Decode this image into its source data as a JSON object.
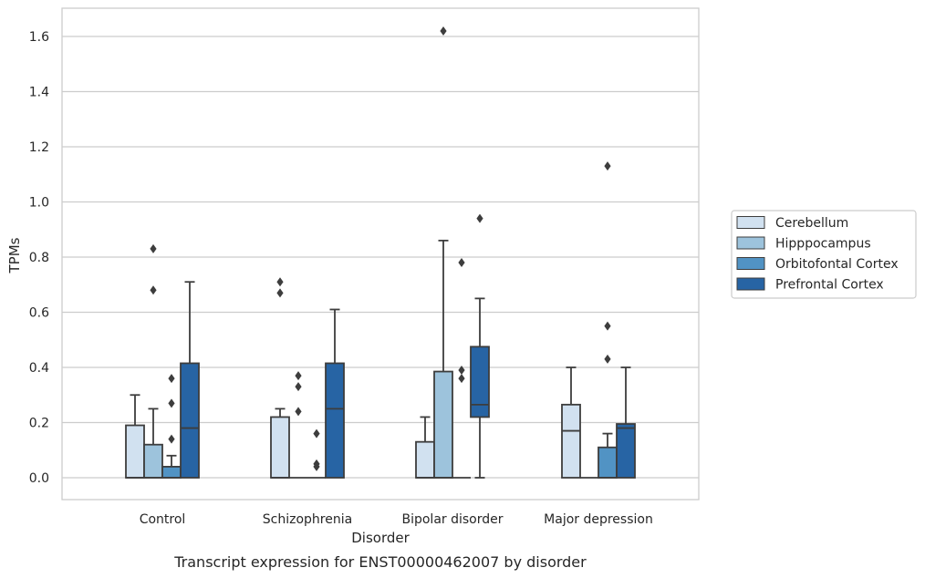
{
  "chart_data": {
    "type": "box",
    "title": "",
    "caption": "Transcript expression for ENST00000462007 by disorder",
    "xlabel": "Disorder",
    "ylabel": "TPMs",
    "ylim": [
      -0.08,
      1.7
    ],
    "yticks": [
      0.0,
      0.2,
      0.4,
      0.6,
      0.8,
      1.0,
      1.2,
      1.4,
      1.6
    ],
    "ytick_labels": [
      "0.0",
      "0.2",
      "0.4",
      "0.6",
      "0.8",
      "1.0",
      "1.2",
      "1.4",
      "1.6"
    ],
    "grid": "horizontal",
    "legend_position": "right",
    "categories": [
      "Control",
      "Schizophrenia",
      "Bipolar disorder",
      "Major depression"
    ],
    "series": [
      {
        "name": "Cerebellum",
        "color": "#d1e1f0",
        "boxes": [
          {
            "min": 0.0,
            "q1": 0.0,
            "median": 0.0,
            "q3": 0.19,
            "max": 0.3,
            "outliers": []
          },
          {
            "min": 0.0,
            "q1": 0.0,
            "median": 0.0,
            "q3": 0.22,
            "max": 0.25,
            "outliers": [
              0.71,
              0.67
            ]
          },
          {
            "min": 0.0,
            "q1": 0.0,
            "median": 0.0,
            "q3": 0.13,
            "max": 0.22,
            "outliers": []
          },
          {
            "min": 0.0,
            "q1": 0.0,
            "median": 0.17,
            "q3": 0.265,
            "max": 0.4,
            "outliers": []
          }
        ]
      },
      {
        "name": "Hipppocampus",
        "color": "#9dc3dc",
        "boxes": [
          {
            "min": 0.0,
            "q1": 0.0,
            "median": 0.0,
            "q3": 0.12,
            "max": 0.25,
            "outliers": [
              0.83,
              0.68
            ]
          },
          {
            "min": 0.0,
            "q1": 0.0,
            "median": 0.0,
            "q3": 0.0,
            "max": 0.0,
            "outliers": [
              0.37,
              0.33,
              0.24
            ]
          },
          {
            "min": 0.0,
            "q1": 0.0,
            "median": 0.0,
            "q3": 0.385,
            "max": 0.86,
            "outliers": [
              1.62
            ]
          },
          {
            "min": 0.0,
            "q1": 0.0,
            "median": 0.0,
            "q3": 0.0,
            "max": 0.0,
            "outliers": []
          }
        ]
      },
      {
        "name": "Orbitofontal Cortex",
        "color": "#5193c4",
        "boxes": [
          {
            "min": 0.0,
            "q1": 0.0,
            "median": 0.0,
            "q3": 0.04,
            "max": 0.08,
            "outliers": [
              0.36,
              0.27,
              0.14
            ]
          },
          {
            "min": 0.0,
            "q1": 0.0,
            "median": 0.0,
            "q3": 0.0,
            "max": 0.0,
            "outliers": [
              0.16,
              0.05,
              0.04
            ]
          },
          {
            "min": 0.0,
            "q1": 0.0,
            "median": 0.0,
            "q3": 0.0,
            "max": 0.0,
            "outliers": [
              0.78,
              0.39,
              0.36
            ]
          },
          {
            "min": 0.0,
            "q1": 0.0,
            "median": 0.0,
            "q3": 0.11,
            "max": 0.16,
            "outliers": [
              1.13,
              0.55,
              0.43
            ]
          }
        ]
      },
      {
        "name": "Prefrontal Cortex",
        "color": "#2764a4",
        "boxes": [
          {
            "min": 0.0,
            "q1": 0.0,
            "median": 0.18,
            "q3": 0.415,
            "max": 0.71,
            "outliers": []
          },
          {
            "min": 0.0,
            "q1": 0.0,
            "median": 0.25,
            "q3": 0.415,
            "max": 0.61,
            "outliers": []
          },
          {
            "min": 0.0,
            "q1": 0.22,
            "median": 0.265,
            "q3": 0.475,
            "max": 0.65,
            "outliers": [
              0.94
            ]
          },
          {
            "min": 0.0,
            "q1": 0.0,
            "median": 0.18,
            "q3": 0.195,
            "max": 0.4,
            "outliers": []
          }
        ]
      }
    ]
  }
}
